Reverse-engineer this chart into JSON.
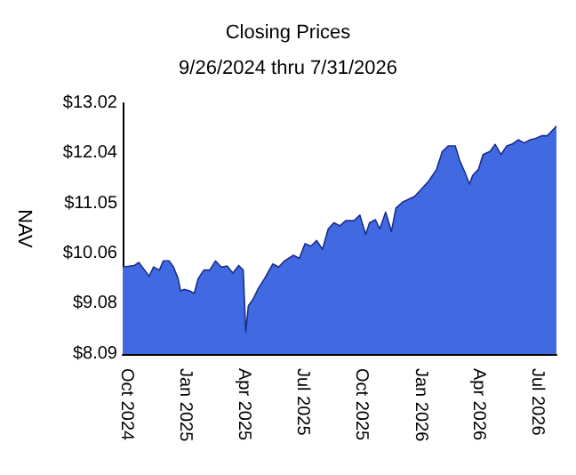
{
  "chart_data": {
    "type": "area",
    "title": "Closing Prices",
    "subtitle": "9/26/2024 thru 7/31/2026",
    "ylabel": "NAV",
    "x": [
      "2024-09-26",
      "2024-10-14",
      "2024-10-21",
      "2024-10-30",
      "2024-11-06",
      "2024-11-13",
      "2024-11-22",
      "2024-11-28",
      "2024-12-07",
      "2024-12-14",
      "2024-12-21",
      "2024-12-25",
      "2024-12-30",
      "2025-01-08",
      "2025-01-15",
      "2025-01-21",
      "2025-01-30",
      "2025-02-08",
      "2025-02-17",
      "2025-02-26",
      "2025-03-07",
      "2025-03-16",
      "2025-03-25",
      "2025-04-01",
      "2025-04-05",
      "2025-04-09",
      "2025-04-16",
      "2025-04-25",
      "2025-05-04",
      "2025-05-17",
      "2025-05-26",
      "2025-06-04",
      "2025-06-18",
      "2025-06-27",
      "2025-07-06",
      "2025-07-15",
      "2025-07-24",
      "2025-08-02",
      "2025-08-11",
      "2025-08-20",
      "2025-08-29",
      "2025-09-07",
      "2025-09-20",
      "2025-09-29",
      "2025-10-08",
      "2025-10-14",
      "2025-10-23",
      "2025-10-30",
      "2025-11-08",
      "2025-11-17",
      "2025-11-24",
      "2025-12-05",
      "2025-12-23",
      "2026-01-01",
      "2026-01-14",
      "2026-01-26",
      "2026-02-04",
      "2026-02-13",
      "2026-02-24",
      "2026-03-03",
      "2026-03-11",
      "2026-03-18",
      "2026-03-23",
      "2026-04-01",
      "2026-04-08",
      "2026-04-19",
      "2026-04-27",
      "2026-05-06",
      "2026-05-15",
      "2026-05-24",
      "2026-06-02",
      "2026-06-11",
      "2026-06-20",
      "2026-06-29",
      "2026-07-08",
      "2026-07-17",
      "2026-07-31"
    ],
    "series": [
      {
        "color": "#4169e1",
        "values": [
          9.8,
          9.83,
          9.89,
          9.74,
          9.62,
          9.8,
          9.74,
          9.92,
          9.92,
          9.8,
          9.57,
          9.33,
          9.36,
          9.33,
          9.28,
          9.57,
          9.74,
          9.74,
          9.92,
          9.8,
          9.82,
          9.68,
          9.83,
          9.74,
          8.52,
          9.04,
          9.16,
          9.39,
          9.57,
          9.86,
          9.8,
          9.92,
          10.03,
          9.97,
          10.26,
          10.21,
          10.32,
          10.15,
          10.55,
          10.67,
          10.61,
          10.71,
          10.71,
          10.82,
          10.44,
          10.67,
          10.73,
          10.55,
          10.88,
          10.5,
          10.96,
          11.08,
          11.19,
          11.31,
          11.49,
          11.72,
          12.07,
          12.18,
          12.18,
          11.89,
          11.66,
          11.43,
          11.6,
          11.72,
          12.01,
          12.07,
          12.21,
          12.01,
          12.18,
          12.22,
          12.3,
          12.24,
          12.3,
          12.33,
          12.38,
          12.38,
          12.57
        ]
      }
    ],
    "xlim": [
      "2024-09-26",
      "2026-07-31"
    ],
    "xticks": [
      {
        "value": "2024-10-01",
        "label": "Oct 2024"
      },
      {
        "value": "2025-01-01",
        "label": "Jan 2025"
      },
      {
        "value": "2025-04-01",
        "label": "Apr 2025"
      },
      {
        "value": "2025-07-01",
        "label": "Jul 2025"
      },
      {
        "value": "2025-10-01",
        "label": "Oct 2025"
      },
      {
        "value": "2026-01-01",
        "label": "Jan 2026"
      },
      {
        "value": "2026-04-01",
        "label": "Apr 2026"
      },
      {
        "value": "2026-07-01",
        "label": "Jul 2026"
      }
    ],
    "ylim": [
      8.09,
      13.02
    ],
    "yticks": [
      {
        "value": 8.09,
        "label": "$8.09"
      },
      {
        "value": 9.08,
        "label": "$9.08"
      },
      {
        "value": 10.06,
        "label": "$10.06"
      },
      {
        "value": 11.05,
        "label": "$11.05"
      },
      {
        "value": 12.04,
        "label": "$12.04"
      },
      {
        "value": 13.02,
        "label": "$13.02"
      }
    ],
    "marker": "none"
  }
}
